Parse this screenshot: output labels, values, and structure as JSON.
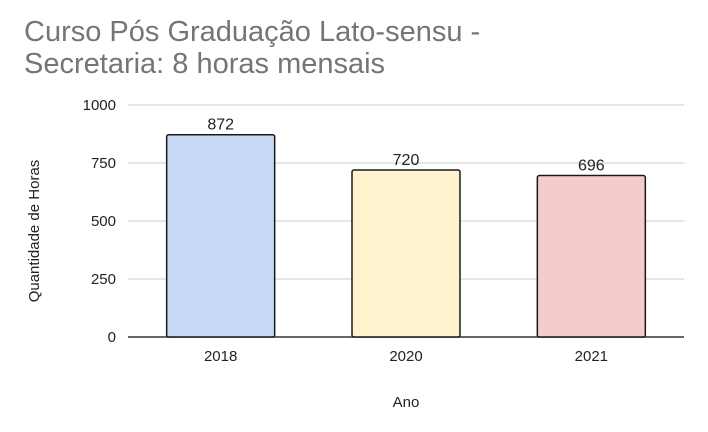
{
  "chart_data": {
    "type": "bar",
    "title_lines": [
      "Curso Pós Graduação Lato-sensu -",
      "Secretaria: 8 horas mensais"
    ],
    "xlabel": "Ano",
    "ylabel": "Quantidade de Horas",
    "categories": [
      "2018",
      "2020",
      "2021"
    ],
    "values": [
      872,
      720,
      696
    ],
    "colors": [
      "#c9daf8",
      "#fff2cc",
      "#f4cccc"
    ],
    "ylim": [
      0,
      1000
    ],
    "yticks": [
      0,
      250,
      500,
      750,
      1000
    ],
    "grid": true,
    "legend": "none"
  }
}
